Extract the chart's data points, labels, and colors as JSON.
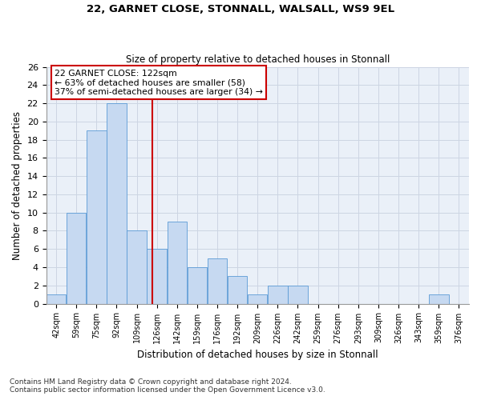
{
  "title1": "22, GARNET CLOSE, STONNALL, WALSALL, WS9 9EL",
  "title2": "Size of property relative to detached houses in Stonnall",
  "xlabel": "Distribution of detached houses by size in Stonnall",
  "ylabel": "Number of detached properties",
  "bins": [
    "42sqm",
    "59sqm",
    "75sqm",
    "92sqm",
    "109sqm",
    "126sqm",
    "142sqm",
    "159sqm",
    "176sqm",
    "192sqm",
    "209sqm",
    "226sqm",
    "242sqm",
    "259sqm",
    "276sqm",
    "293sqm",
    "309sqm",
    "326sqm",
    "343sqm",
    "359sqm",
    "376sqm"
  ],
  "values": [
    1,
    10,
    19,
    22,
    8,
    6,
    9,
    4,
    5,
    3,
    1,
    2,
    2,
    0,
    0,
    0,
    0,
    0,
    0,
    1,
    0
  ],
  "bar_color": "#c6d9f1",
  "bar_edgecolor": "#5b9bd5",
  "grid_color": "#cdd5e3",
  "vline_color": "#cc0000",
  "annotation_text": "22 GARNET CLOSE: 122sqm\n← 63% of detached houses are smaller (58)\n37% of semi-detached houses are larger (34) →",
  "annotation_box_color": "#ffffff",
  "annotation_box_edgecolor": "#cc0000",
  "ylim": [
    0,
    26
  ],
  "yticks": [
    0,
    2,
    4,
    6,
    8,
    10,
    12,
    14,
    16,
    18,
    20,
    22,
    24,
    26
  ],
  "footer1": "Contains HM Land Registry data © Crown copyright and database right 2024.",
  "footer2": "Contains public sector information licensed under the Open Government Licence v3.0.",
  "bg_color": "#ffffff",
  "plot_bg_color": "#eaf0f8"
}
